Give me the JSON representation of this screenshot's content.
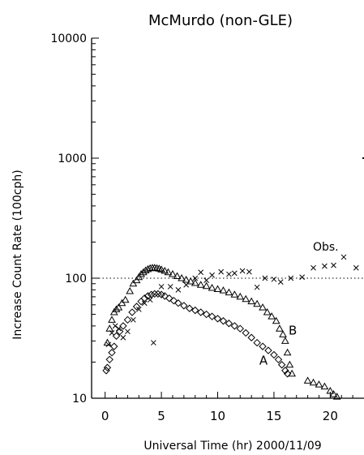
{
  "chart_data": {
    "type": "scatter",
    "title": "McMurdo (non-GLE)",
    "xlabel": "Universal Time (hr) 2000/11/09",
    "ylabel": "Increase Count Rate (100cph)",
    "xlim": [
      -1.2,
      23
    ],
    "ylim": [
      10,
      10000
    ],
    "yscale": "log",
    "x_ticks": [
      0,
      5,
      10,
      15,
      20
    ],
    "y_ticks": [
      10,
      100,
      1000,
      10000
    ],
    "reference_line": {
      "y": 100,
      "style": "dotted"
    },
    "annotations": [
      {
        "text": "Obs.",
        "x": 19.6,
        "y": 170
      },
      {
        "text": "B",
        "x": 16.3,
        "y": 34
      },
      {
        "text": "A",
        "x": 13.7,
        "y": 19
      }
    ],
    "series": [
      {
        "marker": "triangle",
        "points": [
          [
            0.2,
            29
          ],
          [
            0.4,
            38
          ],
          [
            0.6,
            45
          ],
          [
            0.8,
            52
          ],
          [
            1.0,
            55
          ],
          [
            1.2,
            57
          ],
          [
            1.5,
            62
          ],
          [
            1.8,
            66
          ],
          [
            2.2,
            78
          ],
          [
            2.5,
            90
          ],
          [
            2.8,
            96
          ],
          [
            3.0,
            102
          ],
          [
            3.2,
            108
          ],
          [
            3.4,
            112
          ],
          [
            3.6,
            116
          ],
          [
            3.8,
            119
          ],
          [
            4.0,
            121
          ],
          [
            4.2,
            122
          ],
          [
            4.4,
            122
          ],
          [
            4.6,
            121
          ],
          [
            4.8,
            120
          ],
          [
            5.0,
            118
          ],
          [
            5.3,
            115
          ],
          [
            5.6,
            112
          ],
          [
            6.0,
            108
          ],
          [
            6.4,
            104
          ],
          [
            6.8,
            100
          ],
          [
            7.2,
            97
          ],
          [
            7.6,
            94
          ],
          [
            8.0,
            91
          ],
          [
            8.5,
            88
          ],
          [
            9.0,
            86
          ],
          [
            9.5,
            83
          ],
          [
            10.0,
            81
          ],
          [
            10.5,
            79
          ],
          [
            11.0,
            76
          ],
          [
            11.5,
            73
          ],
          [
            12.0,
            70
          ],
          [
            12.5,
            67
          ],
          [
            13.0,
            64
          ],
          [
            13.5,
            61
          ],
          [
            14.0,
            57
          ],
          [
            14.4,
            52
          ],
          [
            14.8,
            48
          ],
          [
            15.2,
            44
          ],
          [
            15.5,
            38
          ],
          [
            15.8,
            34
          ],
          [
            16.0,
            30
          ],
          [
            16.2,
            24
          ],
          [
            16.4,
            19
          ],
          [
            16.6,
            16
          ],
          [
            18.0,
            14
          ],
          [
            18.5,
            13.5
          ],
          [
            19.0,
            13
          ],
          [
            19.5,
            12.5
          ],
          [
            20.0,
            11.5
          ],
          [
            20.3,
            10.8
          ],
          [
            20.6,
            10.3
          ]
        ]
      },
      {
        "marker": "diamond",
        "points": [
          [
            0.1,
            17
          ],
          [
            0.2,
            18
          ],
          [
            0.4,
            21
          ],
          [
            0.6,
            24
          ],
          [
            0.8,
            27
          ],
          [
            1.0,
            33
          ],
          [
            1.3,
            36
          ],
          [
            1.6,
            40
          ],
          [
            2.0,
            45
          ],
          [
            2.4,
            52
          ],
          [
            2.8,
            58
          ],
          [
            3.2,
            64
          ],
          [
            3.5,
            68
          ],
          [
            3.8,
            71
          ],
          [
            4.1,
            73
          ],
          [
            4.4,
            74
          ],
          [
            4.7,
            74
          ],
          [
            5.0,
            73
          ],
          [
            5.3,
            71
          ],
          [
            5.7,
            68
          ],
          [
            6.1,
            65
          ],
          [
            6.5,
            62
          ],
          [
            7.0,
            59
          ],
          [
            7.5,
            56
          ],
          [
            8.0,
            54
          ],
          [
            8.5,
            52
          ],
          [
            9.0,
            50
          ],
          [
            9.5,
            48
          ],
          [
            10.0,
            46
          ],
          [
            10.5,
            44
          ],
          [
            11.0,
            42
          ],
          [
            11.5,
            40
          ],
          [
            12.0,
            38
          ],
          [
            12.5,
            35
          ],
          [
            13.0,
            32
          ],
          [
            13.5,
            29
          ],
          [
            14.0,
            27
          ],
          [
            14.5,
            25
          ],
          [
            15.0,
            23
          ],
          [
            15.4,
            21
          ],
          [
            15.7,
            19
          ],
          [
            16.0,
            17
          ],
          [
            16.2,
            16
          ]
        ]
      },
      {
        "marker": "cross",
        "points": [
          [
            0.3,
            28
          ],
          [
            0.6,
            35
          ],
          [
            0.9,
            40
          ],
          [
            1.2,
            38
          ],
          [
            1.6,
            32
          ],
          [
            2.0,
            36
          ],
          [
            2.5,
            45
          ],
          [
            3.0,
            55
          ],
          [
            3.5,
            62
          ],
          [
            4.0,
            66
          ],
          [
            4.3,
            29
          ],
          [
            5.0,
            85
          ],
          [
            5.8,
            85
          ],
          [
            6.5,
            80
          ],
          [
            7.2,
            88
          ],
          [
            8.0,
            100
          ],
          [
            8.5,
            112
          ],
          [
            9.0,
            96
          ],
          [
            9.5,
            106
          ],
          [
            10.3,
            113
          ],
          [
            11.0,
            108
          ],
          [
            11.5,
            110
          ],
          [
            12.2,
            115
          ],
          [
            12.8,
            113
          ],
          [
            13.5,
            84
          ],
          [
            14.2,
            100
          ],
          [
            15.0,
            98
          ],
          [
            15.6,
            93
          ],
          [
            16.5,
            100
          ],
          [
            17.5,
            102
          ],
          [
            18.5,
            122
          ],
          [
            19.5,
            126
          ],
          [
            20.3,
            128
          ],
          [
            21.2,
            150
          ],
          [
            22.3,
            122
          ]
        ]
      }
    ]
  }
}
